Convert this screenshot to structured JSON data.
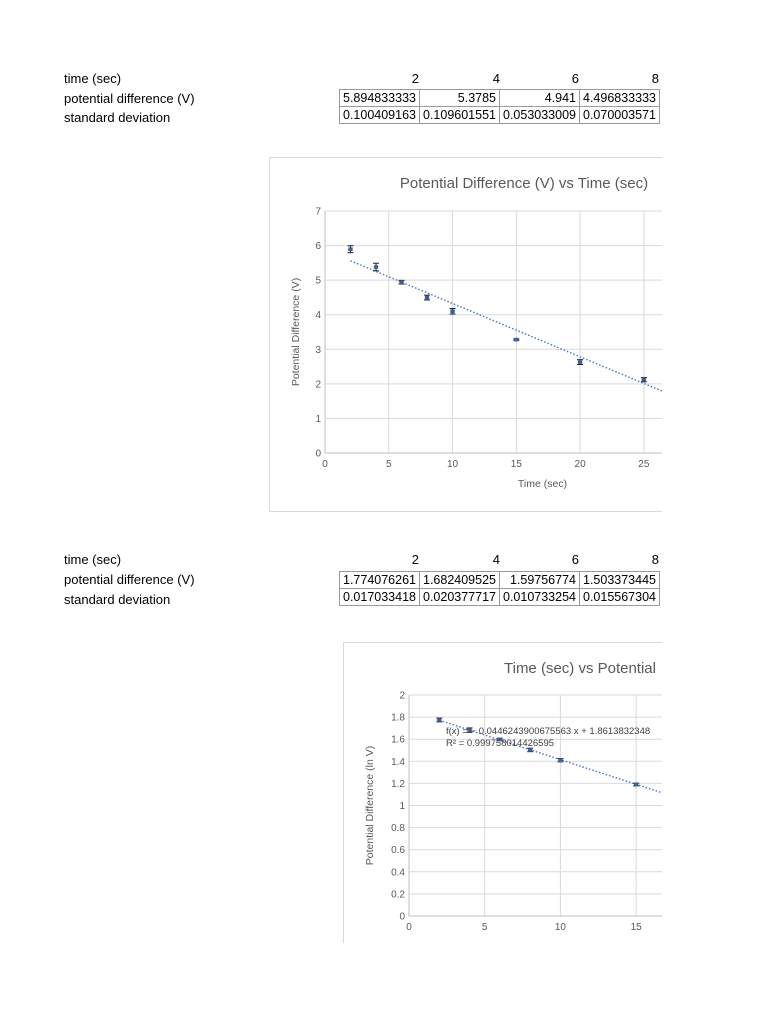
{
  "table1": {
    "labels": [
      "time (sec)",
      "potential difference (V)",
      "standard deviation"
    ],
    "times": [
      "2",
      "4",
      "6",
      "8"
    ],
    "potential": [
      "5.894833333",
      "5.3785",
      "4.941",
      "4.496833333"
    ],
    "stdev": [
      "0.100409163",
      "0.109601551",
      "0.053033009",
      "0.070003571"
    ]
  },
  "table2": {
    "labels": [
      "time (sec)",
      "potential difference (V)",
      "standard deviation"
    ],
    "times": [
      "2",
      "4",
      "6",
      "8"
    ],
    "potential": [
      "1.774076261",
      "1.682409525",
      "1.59756774",
      "1.503373445"
    ],
    "stdev": [
      "0.017033418",
      "0.020377717",
      "0.010733254",
      "0.015567304"
    ]
  },
  "chart_data": [
    {
      "type": "scatter",
      "title": "Potential Difference (V) vs Time (sec)",
      "xlabel": "Time (sec)",
      "ylabel": "Potential Difference (V)",
      "xlim": [
        0,
        26.5
      ],
      "ylim": [
        0,
        7
      ],
      "xticks": [
        0,
        5,
        10,
        15,
        20,
        25
      ],
      "yticks": [
        0,
        1,
        2,
        3,
        4,
        5,
        6,
        7
      ],
      "grid": true,
      "points": [
        {
          "x": 2,
          "y": 5.895,
          "err": 0.1
        },
        {
          "x": 4,
          "y": 5.379,
          "err": 0.11
        },
        {
          "x": 6,
          "y": 4.941,
          "err": 0.053
        },
        {
          "x": 8,
          "y": 4.497,
          "err": 0.07
        },
        {
          "x": 10,
          "y": 4.1,
          "err": 0.08
        },
        {
          "x": 15,
          "y": 3.28,
          "err": 0.02
        },
        {
          "x": 20,
          "y": 2.63,
          "err": 0.07
        },
        {
          "x": 25,
          "y": 2.12,
          "err": 0.06
        }
      ],
      "trendline": {
        "x": [
          2,
          26.5
        ],
        "y": [
          5.56,
          1.78
        ]
      },
      "series_color": "#3f5f9a",
      "trend_color": "#4472c4"
    },
    {
      "type": "scatter",
      "title": "Time (sec) vs Potential",
      "xlabel": "",
      "ylabel": "Potential Difference (ln V)",
      "xlim": [
        0,
        17.5
      ],
      "ylim": [
        0,
        2
      ],
      "xticks": [
        0,
        5,
        10,
        15
      ],
      "yticks": [
        0,
        0.2,
        0.4,
        0.6,
        0.8,
        1,
        1.2,
        1.4,
        1.6,
        1.8,
        2
      ],
      "grid": true,
      "points": [
        {
          "x": 2,
          "y": 1.774,
          "err": 0.017
        },
        {
          "x": 4,
          "y": 1.682,
          "err": 0.02
        },
        {
          "x": 6,
          "y": 1.598,
          "err": 0.011
        },
        {
          "x": 8,
          "y": 1.503,
          "err": 0.016
        },
        {
          "x": 10,
          "y": 1.41,
          "err": 0.015
        },
        {
          "x": 15,
          "y": 1.19,
          "err": 0.012
        }
      ],
      "trendline": {
        "x": [
          2,
          17.5
        ],
        "y": [
          1.772,
          1.08
        ]
      },
      "equation": "f(x) = − 0.0446243900675563 x + 1.8613832348",
      "r_squared": "R² = 0.999758014426595",
      "series_color": "#3f5f9a",
      "trend_color": "#4472c4"
    }
  ]
}
